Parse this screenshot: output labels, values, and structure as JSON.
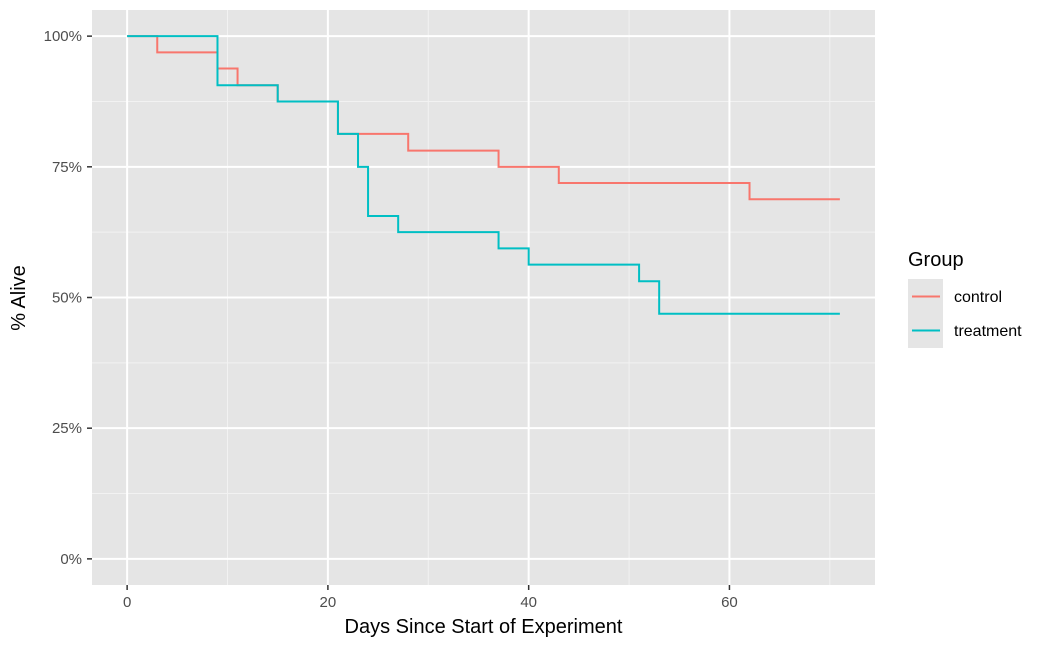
{
  "chart_data": {
    "type": "line",
    "step": true,
    "xlabel": "Days Since Start of Experiment",
    "ylabel": "% Alive",
    "xlim": [
      -3.5,
      74.5
    ],
    "ylim": [
      -5,
      105
    ],
    "x_ticks": [
      0,
      20,
      40,
      60
    ],
    "x_tick_labels": [
      "0",
      "20",
      "40",
      "60"
    ],
    "x_minor_ticks": [
      10,
      30,
      50,
      70
    ],
    "y_ticks": [
      0,
      25,
      50,
      75,
      100
    ],
    "y_tick_labels": [
      "0%",
      "25%",
      "50%",
      "75%",
      "100%"
    ],
    "y_minor_ticks": [
      12.5,
      37.5,
      62.5,
      87.5
    ],
    "grid": true,
    "panel_background": "#e5e5e5",
    "legend": {
      "title": "Group",
      "position": "right",
      "entries": [
        "control",
        "treatment"
      ]
    },
    "series": [
      {
        "name": "control",
        "color": "#f8766d",
        "x": [
          0,
          3,
          9,
          11,
          15,
          21,
          28,
          37,
          43,
          62,
          71
        ],
        "y": [
          100,
          96.9,
          93.8,
          90.6,
          87.5,
          81.3,
          78.1,
          75.0,
          71.9,
          68.8,
          68.8
        ]
      },
      {
        "name": "treatment",
        "color": "#00bfc4",
        "x": [
          0,
          9,
          15,
          21,
          23,
          24,
          27,
          37,
          40,
          51,
          53,
          71
        ],
        "y": [
          100,
          90.6,
          87.5,
          81.3,
          75.0,
          65.6,
          62.5,
          59.4,
          56.3,
          53.1,
          46.9,
          46.9
        ]
      }
    ]
  }
}
